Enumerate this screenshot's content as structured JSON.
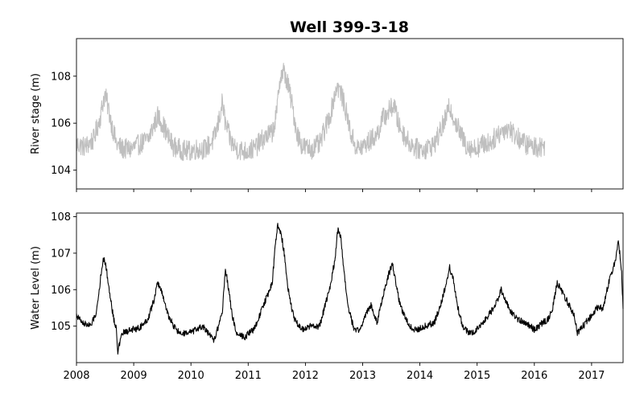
{
  "figure": {
    "title": "Well 399-3-18"
  },
  "chart_data": [
    {
      "type": "line",
      "xlabel": "",
      "ylabel": "River stage (m)",
      "xlim": [
        2008.0,
        2017.55
      ],
      "ylim": [
        103.2,
        109.6
      ],
      "yticks": [
        104,
        106,
        108
      ],
      "xticks": [
        2008,
        2009,
        2010,
        2011,
        2012,
        2013,
        2014,
        2015,
        2016,
        2017
      ],
      "xtick_labels_visible": false,
      "grid": false,
      "series": [
        {
          "color": "#bfbfbf",
          "noise": 0.45,
          "x": [
            2008.0,
            2008.15,
            2008.3,
            2008.42,
            2008.47,
            2008.5,
            2008.55,
            2008.62,
            2008.7,
            2008.8,
            2008.95,
            2009.1,
            2009.25,
            2009.35,
            2009.42,
            2009.5,
            2009.6,
            2009.7,
            2009.8,
            2009.95,
            2010.1,
            2010.25,
            2010.4,
            2010.48,
            2010.55,
            2010.6,
            2010.7,
            2010.8,
            2010.95,
            2011.1,
            2011.25,
            2011.35,
            2011.42,
            2011.5,
            2011.55,
            2011.62,
            2011.7,
            2011.78,
            2011.85,
            2011.95,
            2012.1,
            2012.25,
            2012.35,
            2012.45,
            2012.5,
            2012.55,
            2012.62,
            2012.7,
            2012.8,
            2012.9,
            2013.0,
            2013.1,
            2013.25,
            2013.35,
            2013.45,
            2013.55,
            2013.62,
            2013.7,
            2013.8,
            2013.95,
            2014.1,
            2014.25,
            2014.35,
            2014.45,
            2014.52,
            2014.6,
            2014.7,
            2014.8,
            2014.95,
            2015.1,
            2015.25,
            2015.35,
            2015.45,
            2015.55,
            2015.7,
            2015.85,
            2016.0,
            2016.1,
            2016.18
          ],
          "y": [
            105.1,
            105.0,
            105.3,
            106.3,
            107.0,
            107.2,
            106.7,
            105.9,
            105.1,
            104.9,
            104.9,
            105.1,
            105.3,
            105.9,
            106.3,
            106.0,
            105.4,
            105.0,
            104.9,
            104.8,
            104.9,
            104.9,
            105.3,
            106.0,
            106.9,
            106.0,
            105.2,
            104.9,
            104.8,
            104.9,
            105.3,
            105.5,
            105.6,
            106.4,
            107.9,
            108.2,
            107.6,
            106.6,
            105.6,
            105.0,
            104.9,
            105.1,
            105.8,
            106.5,
            107.1,
            107.6,
            107.3,
            106.6,
            105.5,
            104.9,
            105.0,
            105.2,
            105.5,
            106.2,
            106.5,
            106.8,
            106.0,
            105.6,
            105.2,
            104.9,
            104.9,
            105.1,
            105.6,
            106.2,
            106.7,
            106.2,
            105.6,
            105.1,
            104.9,
            105.1,
            105.2,
            105.5,
            105.7,
            105.8,
            105.4,
            105.1,
            105.0,
            105.0,
            105.0
          ]
        }
      ]
    },
    {
      "type": "line",
      "xlabel": "",
      "ylabel": "Water Level (m)",
      "xlim": [
        2008.0,
        2017.55
      ],
      "ylim": [
        104.0,
        108.1
      ],
      "yticks": [
        105,
        106,
        107,
        108
      ],
      "xticks": [
        2008,
        2009,
        2010,
        2011,
        2012,
        2013,
        2014,
        2015,
        2016,
        2017
      ],
      "xtick_labels": [
        "2008",
        "2009",
        "2010",
        "2011",
        "2012",
        "2013",
        "2014",
        "2015",
        "2016",
        "2017"
      ],
      "grid": false,
      "series": [
        {
          "color": "#000000",
          "noise": 0.09,
          "x": [
            2008.0,
            2008.1,
            2008.25,
            2008.35,
            2008.42,
            2008.47,
            2008.52,
            2008.58,
            2008.65,
            2008.7,
            2008.72,
            2008.8,
            2008.95,
            2009.1,
            2009.25,
            2009.35,
            2009.42,
            2009.5,
            2009.6,
            2009.7,
            2009.8,
            2009.95,
            2010.1,
            2010.2,
            2010.3,
            2010.4,
            2010.48,
            2010.55,
            2010.6,
            2010.65,
            2010.72,
            2010.8,
            2010.95,
            2011.0,
            2011.1,
            2011.2,
            2011.3,
            2011.35,
            2011.42,
            2011.48,
            2011.52,
            2011.58,
            2011.63,
            2011.7,
            2011.8,
            2011.95,
            2012.1,
            2012.25,
            2012.35,
            2012.45,
            2012.52,
            2012.57,
            2012.62,
            2012.67,
            2012.75,
            2012.85,
            2012.95,
            2013.05,
            2013.15,
            2013.25,
            2013.35,
            2013.45,
            2013.52,
            2013.58,
            2013.65,
            2013.75,
            2013.85,
            2013.95,
            2014.1,
            2014.25,
            2014.35,
            2014.45,
            2014.52,
            2014.58,
            2014.65,
            2014.75,
            2014.85,
            2014.95,
            2015.1,
            2015.25,
            2015.35,
            2015.42,
            2015.5,
            2015.58,
            2015.7,
            2015.85,
            2016.0,
            2016.15,
            2016.25,
            2016.32,
            2016.4,
            2016.5,
            2016.6,
            2016.7,
            2016.75,
            2016.85,
            2017.0,
            2017.1,
            2017.2,
            2017.3,
            2017.4,
            2017.47,
            2017.52,
            2017.55
          ],
          "y": [
            105.3,
            105.1,
            105.0,
            105.4,
            106.3,
            106.9,
            106.6,
            105.9,
            105.2,
            104.9,
            104.3,
            104.8,
            104.9,
            104.95,
            105.2,
            105.7,
            106.2,
            105.9,
            105.3,
            105.0,
            104.8,
            104.8,
            104.9,
            105.0,
            104.8,
            104.6,
            105.0,
            105.4,
            106.6,
            106.1,
            105.3,
            104.8,
            104.7,
            104.8,
            104.9,
            105.3,
            105.7,
            105.9,
            106.2,
            107.3,
            107.8,
            107.5,
            107.0,
            106.0,
            105.2,
            104.9,
            105.0,
            105.0,
            105.6,
            106.2,
            106.9,
            107.7,
            107.4,
            106.5,
            105.5,
            104.9,
            104.9,
            105.3,
            105.6,
            105.1,
            105.8,
            106.4,
            106.7,
            106.2,
            105.6,
            105.2,
            104.95,
            104.9,
            105.0,
            105.1,
            105.5,
            106.1,
            106.6,
            106.3,
            105.6,
            105.0,
            104.8,
            104.85,
            105.1,
            105.4,
            105.7,
            106.0,
            105.7,
            105.4,
            105.2,
            105.1,
            104.9,
            105.1,
            105.2,
            105.5,
            106.2,
            105.9,
            105.6,
            105.3,
            104.8,
            105.0,
            105.3,
            105.5,
            105.5,
            106.2,
            106.7,
            107.3,
            106.6,
            105.5
          ]
        }
      ]
    }
  ]
}
